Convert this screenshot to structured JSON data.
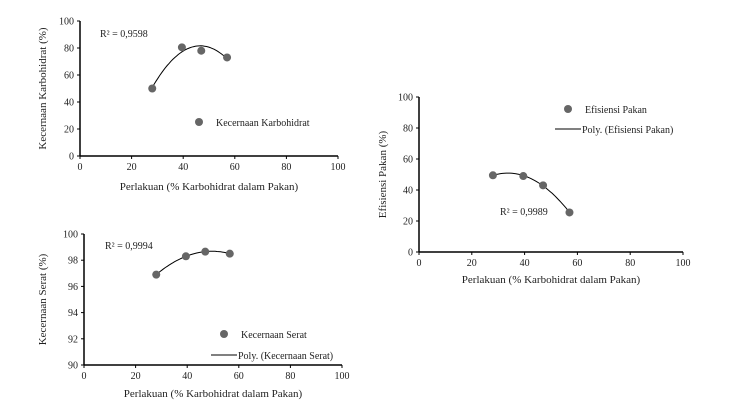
{
  "chart_data": [
    {
      "type": "scatter",
      "xlabel": "Perlakuan (% Karbohidrat dalam Pakan)",
      "ylabel": "Kecernaan Karbohidrat (%)",
      "xlim": [
        0,
        100
      ],
      "ylim": [
        0,
        100
      ],
      "xticks": [
        0,
        20,
        40,
        60,
        80,
        100
      ],
      "yticks": [
        0,
        20,
        40,
        60,
        80,
        100
      ],
      "series": [
        {
          "name": "Kecernaan Karbohidrat",
          "x": [
            28,
            39.5,
            47,
            57
          ],
          "y": [
            50,
            80.5,
            78,
            73
          ]
        }
      ],
      "trendline": {
        "type": "polynomial",
        "order": 2,
        "legend": "",
        "r2_label": "R² = 0,9598"
      },
      "legend": "center-right",
      "grid": false,
      "marker_color": "#666666"
    },
    {
      "type": "scatter",
      "xlabel": "Perlakuan (% Karbohidrat dalam Pakan)",
      "ylabel": "Kecernaan Serat (%)",
      "xlim": [
        0,
        100
      ],
      "ylim": [
        90,
        100
      ],
      "xticks": [
        0,
        20,
        40,
        60,
        80,
        100
      ],
      "yticks": [
        90,
        92,
        94,
        96,
        98,
        100
      ],
      "series": [
        {
          "name": "Kecernaan Serat",
          "x": [
            28,
            39.5,
            47,
            56.5
          ],
          "y": [
            96.9,
            98.3,
            98.65,
            98.5
          ]
        }
      ],
      "trendline": {
        "type": "polynomial",
        "order": 2,
        "legend": "Poly. (Kecernaan Serat)",
        "r2_label": "R² = 0,9994"
      },
      "legend": "bottom-right",
      "grid": false,
      "marker_color": "#666666"
    },
    {
      "type": "scatter",
      "xlabel": "Perlakuan (% Karbohidrat dalam Pakan)",
      "ylabel": "Efisiensi Pakan (%)",
      "xlim": [
        0,
        100
      ],
      "ylim": [
        0,
        100
      ],
      "xticks": [
        0,
        20,
        40,
        60,
        80,
        100
      ],
      "yticks": [
        0,
        20,
        40,
        60,
        80,
        100
      ],
      "series": [
        {
          "name": "Efisiensi Pakan",
          "x": [
            28,
            39.5,
            47,
            57
          ],
          "y": [
            49.5,
            49,
            43,
            25.5
          ]
        }
      ],
      "trendline": {
        "type": "polynomial",
        "order": 2,
        "legend": "Poly. (Efisiensi Pakan)",
        "r2_label": "R² = 0,9989"
      },
      "legend": "top-right",
      "grid": false,
      "marker_color": "#666666"
    }
  ]
}
